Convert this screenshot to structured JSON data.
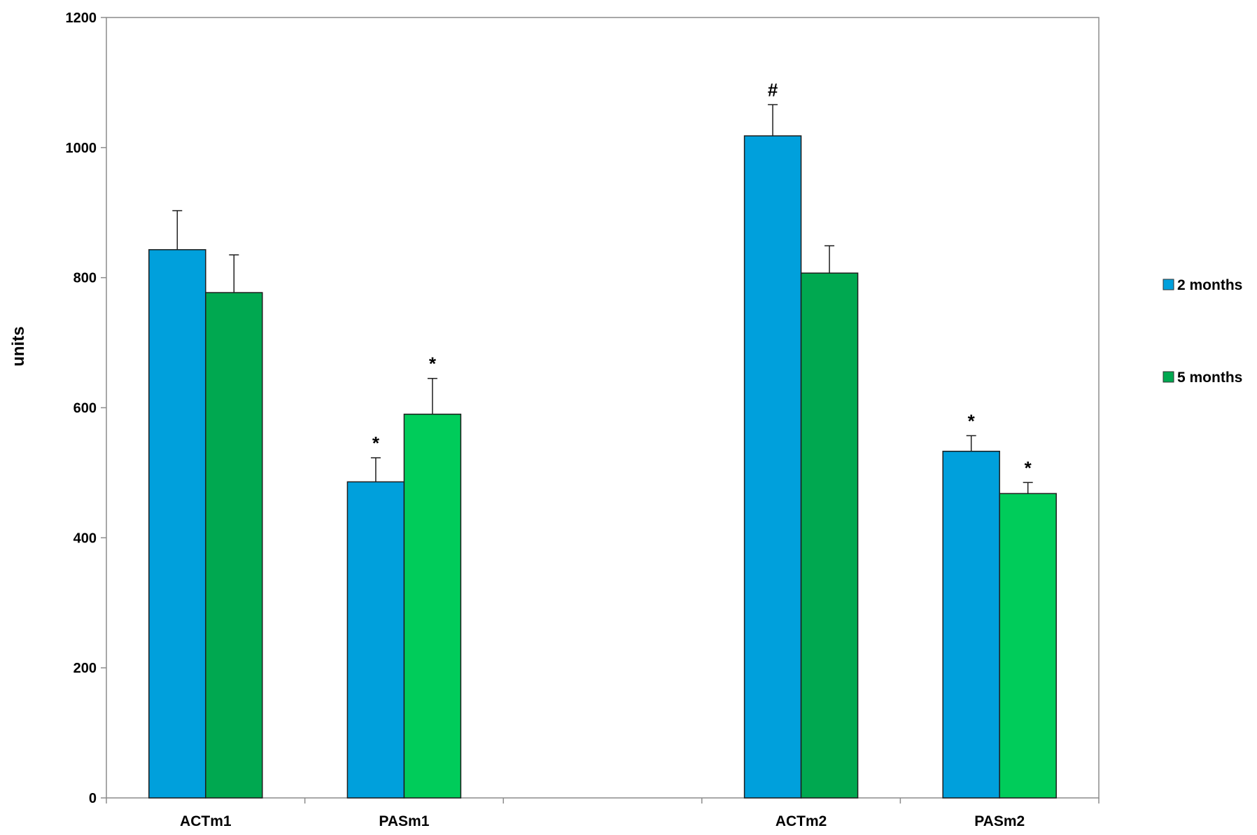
{
  "chart_data": {
    "type": "bar",
    "ylabel": "units",
    "xlabel": "",
    "ylim": [
      0,
      1200
    ],
    "yticks": [
      0,
      200,
      400,
      600,
      800,
      1000,
      1200
    ],
    "grid": false,
    "legend_position": "right",
    "slots": [
      "ACTm1",
      "PASm1",
      "",
      "ACTm2",
      "PASm2"
    ],
    "categories": [
      "ACTm1",
      "PASm1",
      "ACTm2",
      "PASm2"
    ],
    "series": [
      {
        "name": "2 months",
        "color": "#00a0dc",
        "values": [
          843,
          486,
          1018,
          533
        ],
        "errors": [
          60,
          37,
          48,
          24
        ],
        "annotations": [
          "",
          "*",
          "#",
          "*"
        ]
      },
      {
        "name": "5 months",
        "color": "#00a850",
        "colors": [
          "#00a850",
          "#00cc5a",
          "#00a850",
          "#00cc5a"
        ],
        "values": [
          777,
          590,
          807,
          468
        ],
        "errors": [
          58,
          55,
          42,
          17
        ],
        "annotations": [
          "",
          "*",
          "",
          "*"
        ]
      }
    ]
  }
}
